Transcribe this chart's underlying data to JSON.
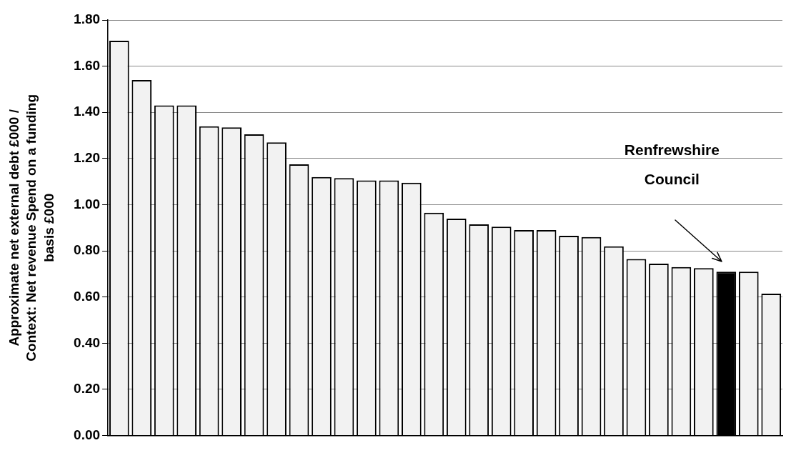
{
  "chart_data": {
    "type": "bar",
    "ylabel": "Approximate net external debt £000 /\nContext: Net revenue Spend on a funding\nbasis £000",
    "categories": [
      null,
      null,
      null,
      null,
      null,
      null,
      null,
      null,
      null,
      null,
      null,
      null,
      null,
      null,
      null,
      null,
      null,
      null,
      null,
      null,
      null,
      null,
      null,
      null,
      null,
      null,
      null,
      null,
      null,
      null
    ],
    "values": [
      1.71,
      1.54,
      1.43,
      1.43,
      1.34,
      1.335,
      1.305,
      1.27,
      1.175,
      1.12,
      1.115,
      1.105,
      1.105,
      1.095,
      0.965,
      0.94,
      0.915,
      0.905,
      0.89,
      0.89,
      0.865,
      0.86,
      0.82,
      0.765,
      0.745,
      0.73,
      0.725,
      0.71,
      0.71,
      0.615
    ],
    "colors": [
      "#f2f2f2",
      "#f2f2f2",
      "#f2f2f2",
      "#f2f2f2",
      "#f2f2f2",
      "#f2f2f2",
      "#f2f2f2",
      "#f2f2f2",
      "#f2f2f2",
      "#f2f2f2",
      "#f2f2f2",
      "#f2f2f2",
      "#f2f2f2",
      "#f2f2f2",
      "#f2f2f2",
      "#f2f2f2",
      "#f2f2f2",
      "#f2f2f2",
      "#f2f2f2",
      "#f2f2f2",
      "#f2f2f2",
      "#f2f2f2",
      "#f2f2f2",
      "#f2f2f2",
      "#f2f2f2",
      "#f2f2f2",
      "#f2f2f2",
      "#000000",
      "#f2f2f2",
      "#f2f2f2"
    ],
    "ylim": [
      0,
      1.8
    ],
    "yticks": [
      {
        "value": 0,
        "label": "0.00"
      },
      {
        "value": 0.2,
        "label": "0.20"
      },
      {
        "value": 0.4,
        "label": "0.40"
      },
      {
        "value": 0.6,
        "label": "0.60"
      },
      {
        "value": 0.8,
        "label": "0.80"
      },
      {
        "value": 1.0,
        "label": "1.00"
      },
      {
        "value": 1.2,
        "label": "1.20"
      },
      {
        "value": 1.4,
        "label": "1.40"
      },
      {
        "value": 1.6,
        "label": "1.60"
      },
      {
        "value": 1.8,
        "label": "1.80"
      }
    ],
    "grid": "y",
    "annotations": [
      "Renfrewshire\nCouncil"
    ]
  }
}
